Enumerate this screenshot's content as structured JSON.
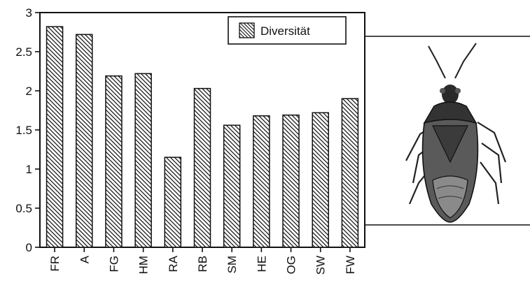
{
  "chart_data": {
    "type": "bar",
    "categories": [
      "FR",
      "A",
      "FG",
      "HM",
      "RA",
      "RB",
      "SM",
      "HE",
      "OG",
      "SW",
      "FW"
    ],
    "series": [
      {
        "name": "Diversität",
        "values": [
          2.82,
          2.72,
          2.19,
          2.22,
          1.15,
          2.03,
          1.56,
          1.68,
          1.69,
          1.72,
          1.9
        ]
      }
    ],
    "ylim": [
      0,
      3
    ],
    "yticks": [
      0,
      0.5,
      1,
      1.5,
      2,
      2.5,
      3
    ],
    "ytick_labels": [
      "0",
      "0.5",
      "1",
      "1.5",
      "2",
      "2.5",
      "3"
    ],
    "xlabel": "",
    "ylabel": "",
    "title": "",
    "grid": false,
    "legend_position": "top-right",
    "bar_fill": "diagonal-hatch",
    "colors": {
      "ink": "#111111",
      "background": "#ffffff"
    }
  },
  "illustration": {
    "subject": "shield bug insect drawing"
  }
}
